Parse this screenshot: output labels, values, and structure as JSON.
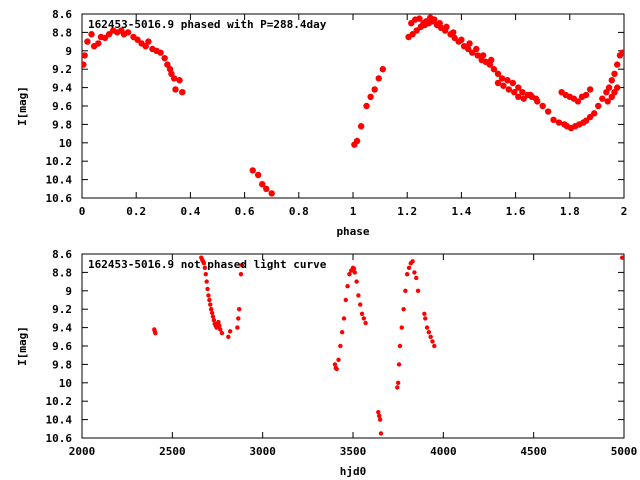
{
  "chart_data": [
    {
      "type": "scatter",
      "title": "162453-5016.9 phased with P=288.4day",
      "xlabel": "phase",
      "ylabel": "I[mag]",
      "xlim": [
        0,
        2
      ],
      "ylim": [
        10.6,
        8.6
      ],
      "y_inverted": true,
      "grid": false,
      "legend": "none",
      "marker_color": "#ff0000",
      "x_ticks": [
        "0",
        "0.2",
        "0.4",
        "0.6",
        "0.8",
        "1",
        "1.2",
        "1.4",
        "1.6",
        "1.8",
        "2"
      ],
      "y_ticks": [
        "8.6",
        "8.8",
        "9",
        "9.2",
        "9.4",
        "9.6",
        "9.8",
        "10",
        "10.2",
        "10.4",
        "10.6"
      ],
      "series": [
        {
          "x": [
            0.005,
            0.01,
            0.02,
            0.035,
            0.045,
            0.06,
            0.07,
            0.085,
            0.1,
            0.115,
            0.13,
            0.145,
            0.155,
            0.17,
            0.19,
            0.205,
            0.22,
            0.235,
            0.245,
            0.26,
            0.275,
            0.29,
            0.305,
            0.315,
            0.325,
            0.33,
            0.34,
            0.345,
            0.36,
            0.37,
            0.63,
            0.65,
            0.665,
            0.68,
            0.7,
            1.005,
            1.015,
            1.03,
            1.05,
            1.065,
            1.08,
            1.095,
            1.11,
            1.205,
            1.22,
            1.235,
            1.25,
            1.265,
            1.28,
            1.295,
            1.31,
            1.325,
            1.34,
            1.36,
            1.375,
            1.39,
            1.41,
            1.425,
            1.44,
            1.46,
            1.475,
            1.49,
            1.505,
            1.52,
            1.535,
            1.55,
            1.57,
            1.59,
            1.61,
            1.625,
            1.645,
            1.66,
            1.68,
            1.7,
            1.72,
            1.74,
            1.76,
            1.78,
            1.79,
            1.805,
            1.82,
            1.835,
            1.85,
            1.86,
            1.875,
            1.89,
            1.905,
            1.92,
            1.935,
            1.945,
            1.955,
            1.965,
            1.975,
            1.985,
            1.995,
            1.535,
            1.555,
            1.575,
            1.595,
            1.61,
            1.63,
            1.655,
            1.675,
            1.77,
            1.785,
            1.8,
            1.815,
            1.83,
            1.845,
            1.86,
            1.875,
            1.94,
            1.955,
            1.965,
            1.975,
            1.215,
            1.23,
            1.245,
            1.26,
            1.27,
            1.285,
            1.3,
            1.32,
            1.345,
            1.37,
            1.4,
            1.43,
            1.455,
            1.48,
            1.51
          ],
          "y": [
            9.15,
            9.05,
            8.9,
            8.82,
            8.95,
            8.92,
            8.85,
            8.86,
            8.82,
            8.78,
            8.8,
            8.78,
            8.82,
            8.8,
            8.85,
            8.88,
            8.92,
            8.95,
            8.9,
            8.98,
            9.0,
            9.02,
            9.08,
            9.15,
            9.2,
            9.25,
            9.3,
            9.42,
            9.32,
            9.45,
            10.3,
            10.35,
            10.45,
            10.5,
            10.55,
            10.02,
            9.98,
            9.82,
            9.6,
            9.5,
            9.42,
            9.3,
            9.2,
            8.85,
            8.82,
            8.78,
            8.74,
            8.72,
            8.7,
            8.68,
            8.72,
            8.75,
            8.78,
            8.82,
            8.86,
            8.9,
            8.95,
            8.98,
            9.02,
            9.05,
            9.1,
            9.12,
            9.15,
            9.2,
            9.25,
            9.3,
            9.32,
            9.35,
            9.4,
            9.45,
            9.48,
            9.5,
            9.55,
            9.6,
            9.66,
            9.75,
            9.78,
            9.8,
            9.82,
            9.84,
            9.82,
            9.8,
            9.78,
            9.76,
            9.72,
            9.68,
            9.6,
            9.52,
            9.45,
            9.4,
            9.32,
            9.25,
            9.15,
            9.05,
            9.02,
            9.35,
            9.38,
            9.42,
            9.45,
            9.5,
            9.52,
            9.48,
            9.52,
            9.45,
            9.48,
            9.5,
            9.52,
            9.55,
            9.5,
            9.48,
            9.42,
            9.55,
            9.5,
            9.45,
            9.4,
            8.7,
            8.66,
            8.65,
            8.7,
            8.68,
            8.64,
            8.66,
            8.7,
            8.74,
            8.8,
            8.88,
            8.92,
            8.98,
            9.05,
            9.1
          ]
        }
      ]
    },
    {
      "type": "scatter",
      "title": "162453-5016.9 not phased light curve",
      "xlabel": "hjd0",
      "ylabel": "I[mag]",
      "xlim": [
        2000,
        5000
      ],
      "ylim": [
        10.6,
        8.6
      ],
      "y_inverted": true,
      "grid": false,
      "legend": "none",
      "marker_color": "#ff0000",
      "x_ticks": [
        "2000",
        "2500",
        "3000",
        "3500",
        "4000",
        "4500",
        "5000"
      ],
      "y_ticks": [
        "8.6",
        "8.8",
        "9",
        "9.2",
        "9.4",
        "9.6",
        "9.8",
        "10",
        "10.2",
        "10.4",
        "10.6"
      ],
      "series": [
        {
          "x": [
            2400,
            2403,
            2406,
            2660,
            2665,
            2670,
            2675,
            2680,
            2685,
            2690,
            2695,
            2700,
            2705,
            2710,
            2715,
            2720,
            2725,
            2730,
            2735,
            2740,
            2745,
            2750,
            2755,
            2760,
            2765,
            2775,
            2810,
            2820,
            2860,
            2865,
            2870,
            2880,
            2885,
            3400,
            3405,
            3410,
            3420,
            3430,
            3440,
            3450,
            3460,
            3470,
            3480,
            3490,
            3500,
            3505,
            3510,
            3520,
            3530,
            3540,
            3550,
            3560,
            3570,
            3640,
            3645,
            3650,
            3655,
            3745,
            3750,
            3755,
            3760,
            3770,
            3780,
            3790,
            3800,
            3810,
            3820,
            3830,
            3840,
            3850,
            3860,
            3895,
            3900,
            3910,
            3920,
            3930,
            3940,
            3950,
            4990
          ],
          "y": [
            9.42,
            9.44,
            9.46,
            8.64,
            8.66,
            8.68,
            8.7,
            8.75,
            8.82,
            8.9,
            8.98,
            9.05,
            9.1,
            9.15,
            9.2,
            9.24,
            9.28,
            9.32,
            9.36,
            9.38,
            9.4,
            9.36,
            9.34,
            9.38,
            9.42,
            9.46,
            9.5,
            9.44,
            9.4,
            9.3,
            9.2,
            8.82,
            8.72,
            9.8,
            9.84,
            9.85,
            9.75,
            9.6,
            9.45,
            9.3,
            9.1,
            8.95,
            8.82,
            8.78,
            8.75,
            8.76,
            8.8,
            8.9,
            9.05,
            9.15,
            9.25,
            9.3,
            9.35,
            10.32,
            10.36,
            10.4,
            10.55,
            10.05,
            10.0,
            9.8,
            9.6,
            9.4,
            9.2,
            9.0,
            8.82,
            8.75,
            8.7,
            8.68,
            8.8,
            8.86,
            9.0,
            9.25,
            9.3,
            9.4,
            9.45,
            9.5,
            9.55,
            9.6,
            8.64
          ]
        }
      ]
    }
  ]
}
